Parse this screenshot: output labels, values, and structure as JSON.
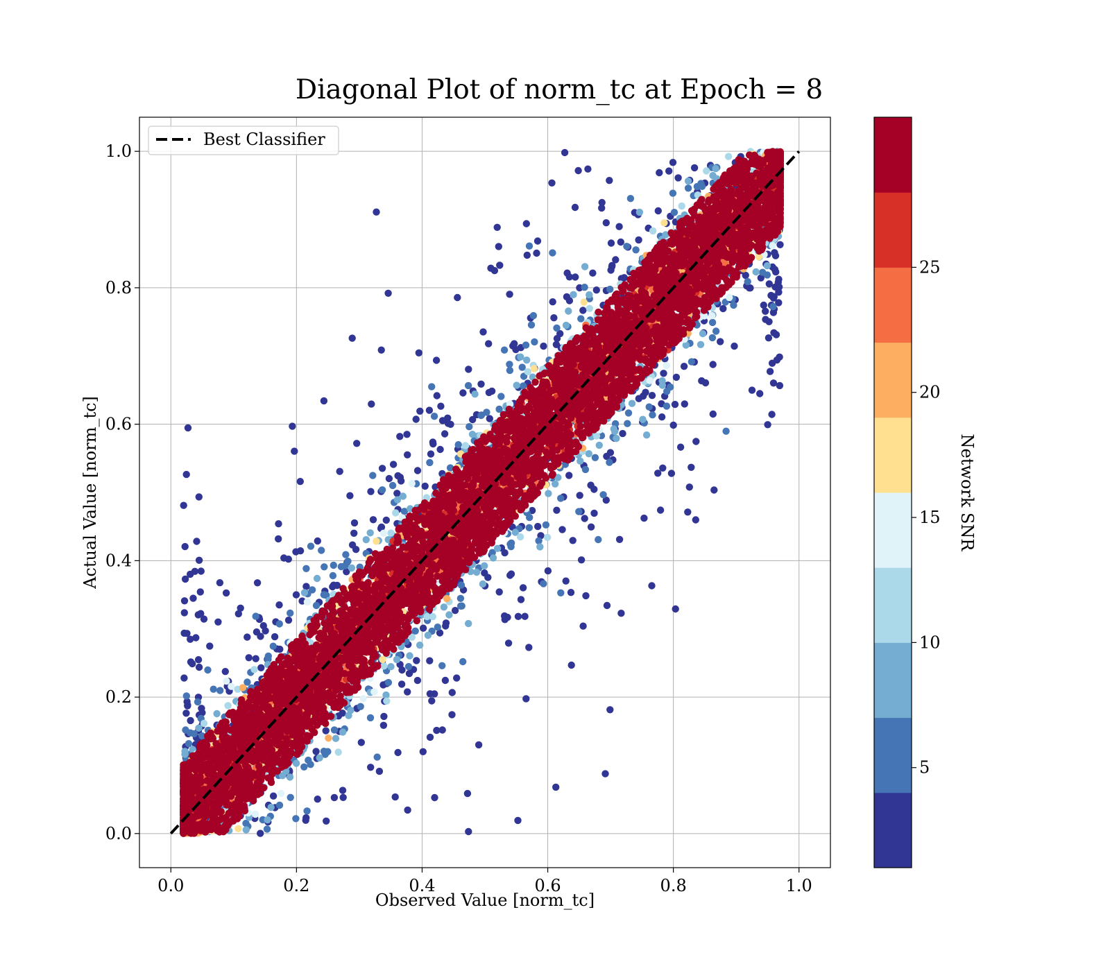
{
  "chart_data": {
    "type": "scatter",
    "title": "Diagonal Plot of norm_tc at Epoch = 8",
    "xlabel": "Observed Value [norm_tc]",
    "ylabel": "Actual Value [norm_tc]",
    "xlim": [
      -0.05,
      1.05
    ],
    "ylim": [
      -0.05,
      1.05
    ],
    "xticks": [
      0.0,
      0.2,
      0.4,
      0.6,
      0.8,
      1.0
    ],
    "yticks": [
      0.0,
      0.2,
      0.4,
      0.6,
      0.8,
      1.0
    ],
    "xtick_labels": [
      "0.0",
      "0.2",
      "0.4",
      "0.6",
      "0.8",
      "1.0"
    ],
    "ytick_labels": [
      "0.0",
      "0.2",
      "0.4",
      "0.6",
      "0.8",
      "1.0"
    ],
    "grid": true,
    "legend": {
      "position": "top-left",
      "entries": [
        {
          "label": "Best Classifier",
          "style": "dashed",
          "color": "#000000"
        }
      ]
    },
    "reference_line": {
      "name": "Best Classifier",
      "x": [
        0.0,
        1.0
      ],
      "y": [
        0.0,
        1.0
      ]
    },
    "colorbar": {
      "label": "Network SNR",
      "range": [
        1,
        31
      ],
      "ticks": [
        5,
        10,
        15,
        20,
        25
      ],
      "tick_labels": [
        "5",
        "10",
        "15",
        "20",
        "25"
      ],
      "bins": [
        {
          "from": 1,
          "to": 4,
          "color": "#313695"
        },
        {
          "from": 4,
          "to": 7,
          "color": "#4575b4"
        },
        {
          "from": 7,
          "to": 10,
          "color": "#74add1"
        },
        {
          "from": 10,
          "to": 13,
          "color": "#abd9e9"
        },
        {
          "from": 13,
          "to": 16,
          "color": "#e0f3f8"
        },
        {
          "from": 16,
          "to": 19,
          "color": "#fee090"
        },
        {
          "from": 19,
          "to": 22,
          "color": "#fdae61"
        },
        {
          "from": 22,
          "to": 25,
          "color": "#f46d43"
        },
        {
          "from": 25,
          "to": 28,
          "color": "#d73027"
        },
        {
          "from": 28,
          "to": 31,
          "color": "#a50026"
        }
      ]
    },
    "point_groups": [
      {
        "snr_range": "28-31",
        "color": "#a50026",
        "description": "dense band around diagonal",
        "band_halfwidth": 0.09
      },
      {
        "snr_range": "16-28",
        "color_range": [
          "#fee090",
          "#d73027"
        ],
        "description": "thin edges of the diagonal band"
      },
      {
        "snr_range": "7-16",
        "color_range": [
          "#74add1",
          "#e0f3f8"
        ],
        "description": "fan-shaped spread off the diagonal"
      },
      {
        "snr_range": "1-7",
        "color_range": [
          "#313695",
          "#4575b4"
        ],
        "description": "widest scatter off the diagonal"
      }
    ]
  }
}
